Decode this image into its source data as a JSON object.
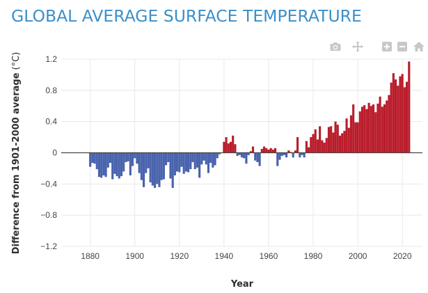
{
  "page": {
    "title": "GLOBAL AVERAGE SURFACE TEMPERATURE"
  },
  "modebar": {
    "buttons": [
      {
        "name": "camera-icon"
      },
      {
        "name": "pan-icon"
      },
      {
        "name": "zoom-in-icon"
      },
      {
        "name": "zoom-out-icon"
      },
      {
        "name": "home-icon"
      }
    ]
  },
  "chart_data": {
    "type": "bar",
    "title": "GLOBAL AVERAGE SURFACE TEMPERATURE",
    "xlabel": "Year",
    "ylabel": "Difference from 1901-2000 average",
    "ylabel_unit": "(°C)",
    "xlim": [
      1867,
      2029
    ],
    "ylim": [
      -1.2,
      1.2
    ],
    "xticks": [
      1880,
      1900,
      1920,
      1940,
      1960,
      1980,
      2000,
      2020
    ],
    "yticks": [
      1.2,
      0.8,
      0.4,
      0,
      -0.4,
      -0.8,
      -1.2
    ],
    "ytick_labels": [
      "1.2",
      "0.8",
      "0.4",
      "0",
      "−0.4",
      "−0.8",
      "−1.2"
    ],
    "grid": true,
    "colors": {
      "positive": "#b91c2b",
      "negative": "#4862ad",
      "title": "#3b8fca",
      "grid": "#e8e8e8"
    },
    "x": [
      1880,
      1881,
      1882,
      1883,
      1884,
      1885,
      1886,
      1887,
      1888,
      1889,
      1890,
      1891,
      1892,
      1893,
      1894,
      1895,
      1896,
      1897,
      1898,
      1899,
      1900,
      1901,
      1902,
      1903,
      1904,
      1905,
      1906,
      1907,
      1908,
      1909,
      1910,
      1911,
      1912,
      1913,
      1914,
      1915,
      1916,
      1917,
      1918,
      1919,
      1920,
      1921,
      1922,
      1923,
      1924,
      1925,
      1926,
      1927,
      1928,
      1929,
      1930,
      1931,
      1932,
      1933,
      1934,
      1935,
      1936,
      1937,
      1938,
      1939,
      1940,
      1941,
      1942,
      1943,
      1944,
      1945,
      1946,
      1947,
      1948,
      1949,
      1950,
      1951,
      1952,
      1953,
      1954,
      1955,
      1956,
      1957,
      1958,
      1959,
      1960,
      1961,
      1962,
      1963,
      1964,
      1965,
      1966,
      1967,
      1968,
      1969,
      1970,
      1971,
      1972,
      1973,
      1974,
      1975,
      1976,
      1977,
      1978,
      1979,
      1980,
      1981,
      1982,
      1983,
      1984,
      1985,
      1986,
      1987,
      1988,
      1989,
      1990,
      1991,
      1992,
      1993,
      1994,
      1995,
      1996,
      1997,
      1998,
      1999,
      2000,
      2001,
      2002,
      2003,
      2004,
      2005,
      2006,
      2007,
      2008,
      2009,
      2010,
      2011,
      2012,
      2013,
      2014,
      2015,
      2016,
      2017,
      2018,
      2019,
      2020,
      2021,
      2022,
      2023
    ],
    "values": [
      -0.18,
      -0.13,
      -0.14,
      -0.21,
      -0.31,
      -0.32,
      -0.29,
      -0.31,
      -0.19,
      -0.13,
      -0.34,
      -0.27,
      -0.3,
      -0.33,
      -0.3,
      -0.24,
      -0.12,
      -0.11,
      -0.29,
      -0.17,
      -0.07,
      -0.14,
      -0.26,
      -0.35,
      -0.44,
      -0.26,
      -0.2,
      -0.38,
      -0.42,
      -0.45,
      -0.4,
      -0.44,
      -0.35,
      -0.34,
      -0.16,
      -0.12,
      -0.33,
      -0.45,
      -0.29,
      -0.24,
      -0.25,
      -0.18,
      -0.27,
      -0.24,
      -0.25,
      -0.21,
      -0.12,
      -0.21,
      -0.19,
      -0.32,
      -0.15,
      -0.1,
      -0.15,
      -0.26,
      -0.13,
      -0.19,
      -0.16,
      -0.07,
      -0.02,
      0.0,
      0.14,
      0.2,
      0.12,
      0.14,
      0.22,
      0.11,
      -0.04,
      -0.03,
      -0.06,
      -0.07,
      -0.14,
      -0.03,
      0.02,
      0.08,
      -0.1,
      -0.12,
      -0.17,
      0.05,
      0.08,
      0.06,
      0.04,
      0.06,
      0.04,
      0.06,
      -0.17,
      -0.09,
      -0.04,
      -0.03,
      -0.06,
      0.03,
      0.01,
      -0.06,
      0.03,
      0.2,
      -0.06,
      -0.03,
      -0.06,
      0.15,
      0.07,
      0.2,
      0.24,
      0.3,
      0.17,
      0.34,
      0.16,
      0.13,
      0.19,
      0.33,
      0.34,
      0.26,
      0.4,
      0.36,
      0.22,
      0.25,
      0.28,
      0.44,
      0.32,
      0.48,
      0.62,
      0.39,
      0.39,
      0.53,
      0.59,
      0.61,
      0.56,
      0.64,
      0.6,
      0.62,
      0.52,
      0.63,
      0.72,
      0.59,
      0.62,
      0.67,
      0.74,
      0.9,
      1.02,
      0.94,
      0.86,
      0.98,
      1.01,
      0.84,
      0.91,
      1.17
    ]
  }
}
